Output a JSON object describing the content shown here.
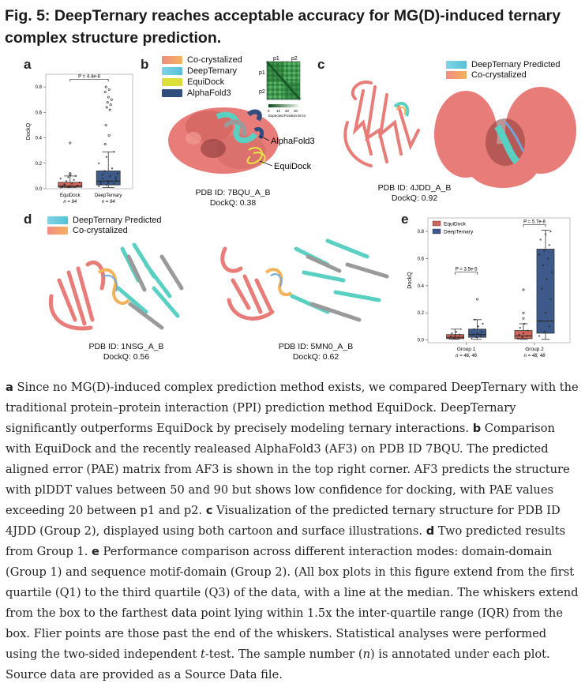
{
  "title": "Fig. 5: DeepTernary reaches acceptable accuracy for MG(D)-induced ternary complex structure prediction.",
  "panels": {
    "a": {
      "letter": "a"
    },
    "b": {
      "letter": "b",
      "legend": [
        "Co-crystalized",
        "DeepTernary",
        "EquiDock",
        "AlphaFold3"
      ],
      "pae": {
        "p1": "p1",
        "p2": "p2",
        "ticks": [
          "0",
          "10",
          "20",
          "30"
        ],
        "xlabel": "Expected Position Error"
      },
      "annotations": [
        "AlphaFold3",
        "EquiDock"
      ],
      "pdb": "PDB ID: 7BQU_A_B",
      "dockq": "DockQ: 0.38"
    },
    "c": {
      "letter": "c",
      "legend": [
        "DeepTernary Predicted",
        "Co-crystalized"
      ],
      "pdb": "PDB ID: 4JDD_A_B",
      "dockq": "DockQ: 0.92"
    },
    "d": {
      "letter": "d",
      "legend": [
        "DeepTernary Predicted",
        "Co-crystalized"
      ],
      "structures": [
        {
          "pdb": "PDB ID: 1NSG_A_B",
          "dockq": "DockQ: 0.56"
        },
        {
          "pdb": "PDB ID: 5MN0_A_B",
          "dockq": "DockQ: 0.62"
        }
      ]
    },
    "e": {
      "letter": "e"
    }
  },
  "chart_data": [
    {
      "type": "box",
      "panel": "a",
      "ylabel": "DockQ",
      "ylim": [
        0,
        0.9
      ],
      "yticks": [
        "0.0",
        "0.2",
        "0.4",
        "0.6",
        "0.8"
      ],
      "categories": [
        "EquiDock",
        "DeepTernary"
      ],
      "n_labels": [
        "n = 94",
        "n = 94"
      ],
      "boxes": [
        {
          "name": "EquiDock",
          "q1": 0.012,
          "median": 0.02,
          "q3": 0.05,
          "whisker_low": 0.01,
          "whisker_high": 0.1,
          "color": "#d0655a"
        },
        {
          "name": "DeepTernary",
          "q1": 0.03,
          "median": 0.06,
          "q3": 0.14,
          "whisker_low": 0.01,
          "whisker_high": 0.29,
          "color": "#3d5a8a"
        }
      ],
      "significance": {
        "label": "P = 4.4e-8"
      }
    },
    {
      "type": "box",
      "panel": "e",
      "ylabel": "DockQ",
      "ylim": [
        -0.02,
        0.9
      ],
      "yticks": [
        "0.0",
        "0.2",
        "0.4",
        "0.6",
        "0.8"
      ],
      "categories": [
        "Group 1",
        "Group 2"
      ],
      "n_labels": [
        "n = 46, 46",
        "n = 48, 48"
      ],
      "legend": [
        {
          "name": "EquiDock",
          "color": "#d0655a"
        },
        {
          "name": "DeepTernary",
          "color": "#3d5a8a"
        }
      ],
      "series": [
        {
          "name": "EquiDock",
          "boxes": [
            {
              "q1": 0.01,
              "median": 0.02,
              "q3": 0.04,
              "whisker_low": 0.005,
              "whisker_high": 0.08
            },
            {
              "q1": 0.01,
              "median": 0.03,
              "q3": 0.07,
              "whisker_low": 0.005,
              "whisker_high": 0.12
            }
          ]
        },
        {
          "name": "DeepTernary",
          "boxes": [
            {
              "q1": 0.02,
              "median": 0.04,
              "q3": 0.08,
              "whisker_low": 0.005,
              "whisker_high": 0.15
            },
            {
              "q1": 0.05,
              "median": 0.14,
              "q3": 0.67,
              "whisker_low": 0.005,
              "whisker_high": 0.81
            }
          ]
        }
      ],
      "significance": [
        {
          "group": "Group 1",
          "label": "P = 3.5e-5"
        },
        {
          "group": "Group 2",
          "label": "P = 5.7e-8"
        }
      ]
    }
  ],
  "caption": {
    "a_label": "a",
    "a_text": " Since no MG(D)-induced complex prediction method exists, we compared DeepTernary with the traditional protein–protein interaction (PPI) prediction method EquiDock. DeepTernary significantly outperforms EquiDock by precisely modeling ternary interactions. ",
    "b_label": "b",
    "b_text": " Comparison with EquiDock and the recently realeased AlphaFold3 (AF3) on PDB ID 7BQU. The predicted aligned error (PAE) matrix from AF3 is shown in the top right corner. AF3 predicts the structure with plDDT values between 50 and 90 but shows low confidence for docking, with PAE values exceeding 20 between p1 and p2. ",
    "c_label": "c",
    "c_text": " Visualization of the predicted ternary structure for PDB ID 4JDD (Group 2), displayed using both cartoon and surface illustrations. ",
    "d_label": "d",
    "d_text": " Two predicted results from Group 1. ",
    "e_label": "e",
    "e_text": " Performance comparison across different interaction modes: domain-domain (Group 1) and sequence motif-domain (Group 2). (All box plots in this figure extend from the first quartile (Q1) to the third quartile (Q3) of the data, with a line at the median. The whiskers extend from the box to the farthest data point lying within 1.5x the inter-quartile range (IQR) from the box. Flier points are those past the end of the whiskers. Statistical analyses were performed using the two-sided independent ",
    "t_label": "t",
    "e_text2": "-test. The sample number (",
    "n_label": "n",
    "e_text3": ") is annotated under each plot. Source data are provided as a Source Data file."
  }
}
